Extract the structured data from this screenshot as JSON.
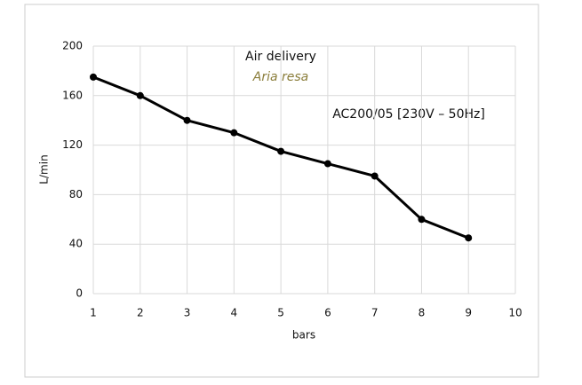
{
  "chart_data": {
    "type": "line",
    "title": "Air delivery",
    "subtitle": "Aria resa",
    "x_label": "bars",
    "y_label": "L/min",
    "x": [
      1,
      2,
      3,
      4,
      5,
      6,
      7,
      8,
      9
    ],
    "series": [
      {
        "name": "AC200/05 [230V – 50Hz]",
        "color": "#000000",
        "values": [
          175,
          160,
          140,
          130,
          115,
          105,
          95,
          60,
          45
        ]
      }
    ],
    "xlim": [
      1,
      10
    ],
    "xticks": [
      1,
      2,
      3,
      4,
      5,
      6,
      7,
      8,
      9,
      10
    ],
    "ylim": [
      0,
      200
    ],
    "yticks": [
      0,
      40,
      80,
      120,
      160,
      200
    ],
    "grid": true,
    "subtitle_color": "#8a7d3a"
  }
}
